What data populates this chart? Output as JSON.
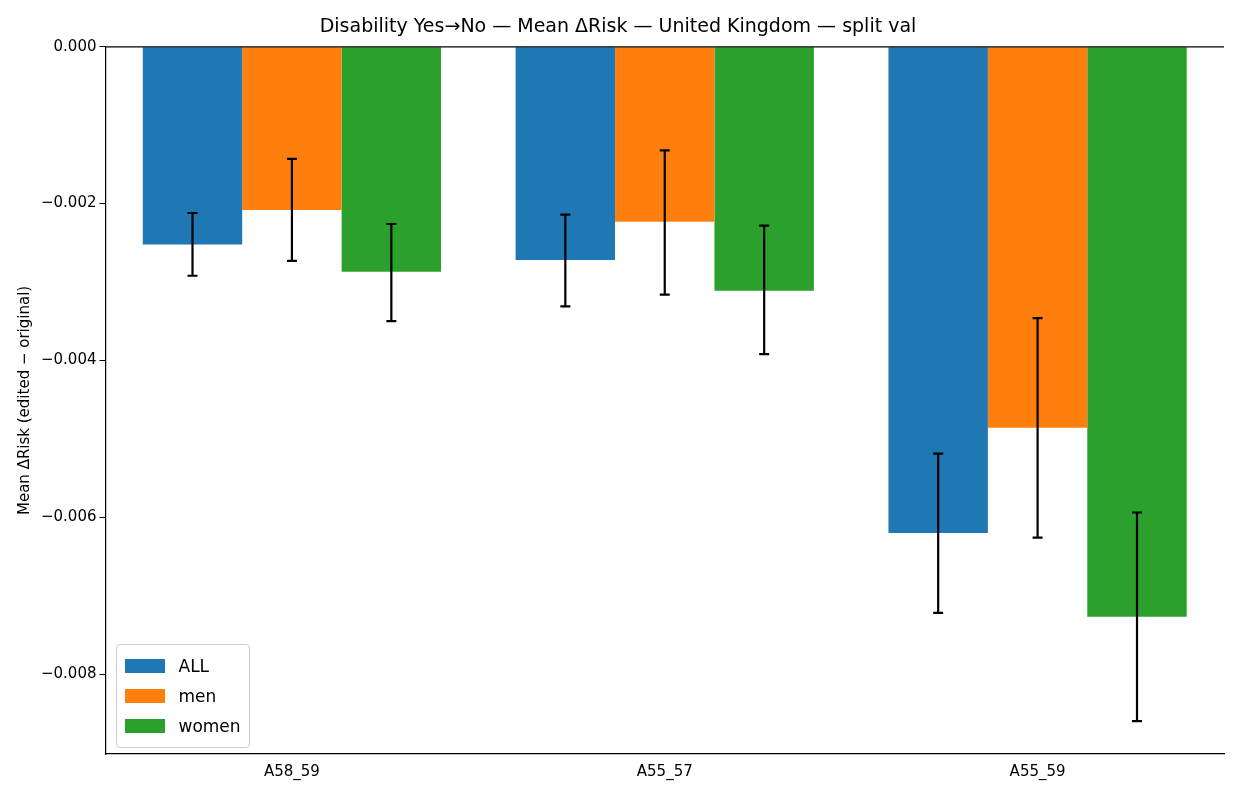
{
  "chart_data": {
    "type": "bar",
    "title": "Disability Yes→No — Mean ΔRisk — United Kingdom — split val",
    "ylabel": "Mean ΔRisk (edited − original)",
    "categories": [
      "A58_59",
      "A55_57",
      "A55_59"
    ],
    "series": [
      {
        "name": "ALL",
        "color": "#1f77b4",
        "values": [
          -0.00252,
          -0.00272,
          -0.0062
        ],
        "errors": [
          [
            -0.00292,
            -0.00212
          ],
          [
            -0.00331,
            -0.00214
          ],
          [
            -0.00722,
            -0.00519
          ]
        ]
      },
      {
        "name": "men",
        "color": "#ff7f0e",
        "values": [
          -0.00208,
          -0.00223,
          -0.00486
        ],
        "errors": [
          [
            -0.00273,
            -0.00143
          ],
          [
            -0.00316,
            -0.00132
          ],
          [
            -0.00626,
            -0.00346
          ]
        ]
      },
      {
        "name": "women",
        "color": "#2ca02c",
        "values": [
          -0.00287,
          -0.00311,
          -0.00727
        ],
        "errors": [
          [
            -0.0035,
            -0.00226
          ],
          [
            -0.00392,
            -0.00228
          ],
          [
            -0.0086,
            -0.00594
          ]
        ]
      }
    ],
    "ylim": [
      -0.00902,
      0
    ],
    "yticks": [
      {
        "value": 0,
        "label": "0.000"
      },
      {
        "value": -0.002,
        "label": "−0.002"
      },
      {
        "value": -0.004,
        "label": "−0.004"
      },
      {
        "value": -0.006,
        "label": "−0.006"
      },
      {
        "value": -0.008,
        "label": "−0.008"
      }
    ],
    "grid": false,
    "legend": "bottom left"
  }
}
